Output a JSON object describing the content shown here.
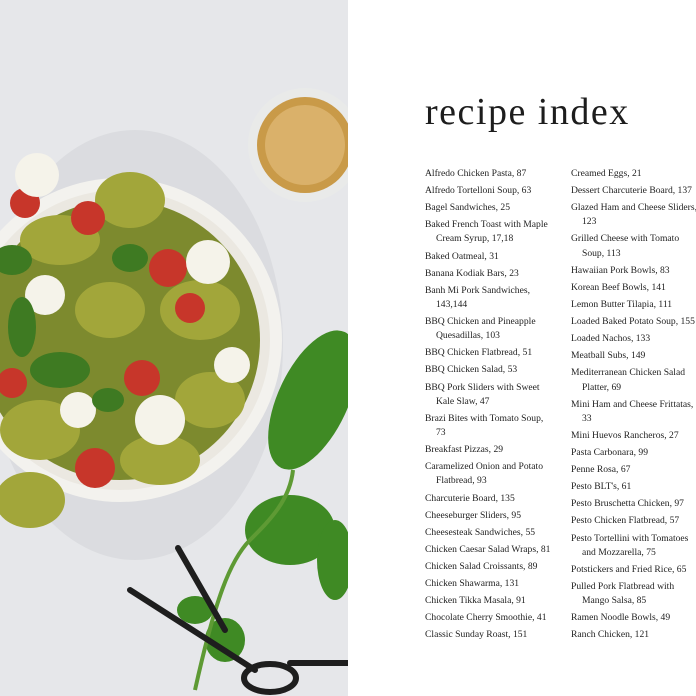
{
  "title": "recipe index",
  "columns": [
    [
      "Alfredo Chicken Pasta, 87",
      "Alfredo Tortelloni Soup, 63",
      "Bagel Sandwiches, 25",
      "Baked French Toast with Maple Cream Syrup, 17,18",
      "Baked Oatmeal, 31",
      "Banana Kodiak Bars, 23",
      "Banh Mi Pork Sandwiches, 143,144",
      "BBQ Chicken and Pineapple Quesadillas, 103",
      "BBQ Chicken Flatbread, 51",
      "BBQ Chicken Salad, 53",
      "BBQ Pork Sliders with Sweet Kale Slaw, 47",
      "Brazi Bites with Tomato Soup, 73",
      "Breakfast Pizzas, 29",
      "Caramelized Onion and Potato Flatbread, 93",
      "Charcuterie Board, 135",
      "Cheeseburger Sliders, 95",
      "Cheesesteak Sandwiches, 55",
      "Chicken Caesar Salad Wraps, 81",
      "Chicken Salad Croissants, 89",
      "Chicken Shawarma, 131",
      "Chicken Tikka Masala, 91",
      "Chocolate Cherry Smoothie, 41",
      "Classic Sunday Roast, 151"
    ],
    [
      "Creamed Eggs, 21",
      "Dessert Charcuterie Board, 137",
      "Glazed Ham and Cheese Sliders, 123",
      "Grilled Cheese with Tomato Soup, 113",
      "Hawaiian Pork Bowls, 83",
      "Korean Beef Bowls, 141",
      "Lemon Butter Tilapia, 111",
      "Loaded Baked Potato Soup, 155",
      "Loaded Nachos, 133",
      "Meatball Subs, 149",
      "Mediterranean Chicken Salad Platter, 69",
      "Mini Ham and Cheese Frittatas, 33",
      "Mini Huevos Rancheros, 27",
      "Pasta Carbonara, 99",
      "Penne Rosa, 67",
      "Pesto BLT's, 61",
      "Pesto Bruschetta Chicken, 97",
      "Pesto Chicken Flatbread, 57",
      "Pesto Tortellini with Tomatoes and Mozzarella, 75",
      "Potstickers and Fried Rice, 65",
      "Pulled Pork Flatbread with Mango Salsa, 85",
      "Ramen Noodle Bowls, 49",
      "Ranch Chicken, 121"
    ]
  ]
}
